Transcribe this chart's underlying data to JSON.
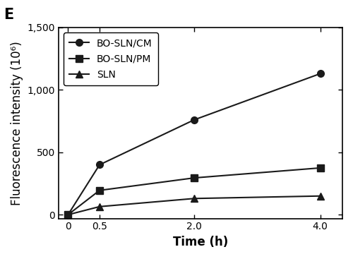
{
  "title_label": "E",
  "xlabel": "Time (h)",
  "ylabel": "Fluorescence intensity (10⁶)",
  "x_values": [
    0,
    0.5,
    2.0,
    4.0
  ],
  "x_ticks": [
    0,
    0.5,
    2.0,
    4.0
  ],
  "x_tick_labels": [
    "0",
    "0.5",
    "2.0",
    "4.0"
  ],
  "ylim": [
    -30,
    1500
  ],
  "y_ticks": [
    0,
    500,
    1000,
    1500
  ],
  "y_tick_labels": [
    "0",
    "500",
    "1,000",
    "1,500"
  ],
  "series": [
    {
      "label": "BO-SLN/CM",
      "values": [
        0,
        400,
        760,
        1130
      ],
      "marker": "o",
      "color": "#1a1a1a",
      "linewidth": 1.5,
      "markersize": 7
    },
    {
      "label": "BO-SLN/PM",
      "values": [
        0,
        195,
        295,
        375
      ],
      "marker": "s",
      "color": "#1a1a1a",
      "linewidth": 1.5,
      "markersize": 7
    },
    {
      "label": "SLN",
      "values": [
        0,
        65,
        130,
        150
      ],
      "marker": "^",
      "color": "#1a1a1a",
      "linewidth": 1.5,
      "markersize": 7
    }
  ],
  "legend_loc": "upper left",
  "legend_fontsize": 10,
  "axis_label_fontsize": 12,
  "tick_fontsize": 10,
  "title_fontsize": 15,
  "background_color": "#ffffff"
}
